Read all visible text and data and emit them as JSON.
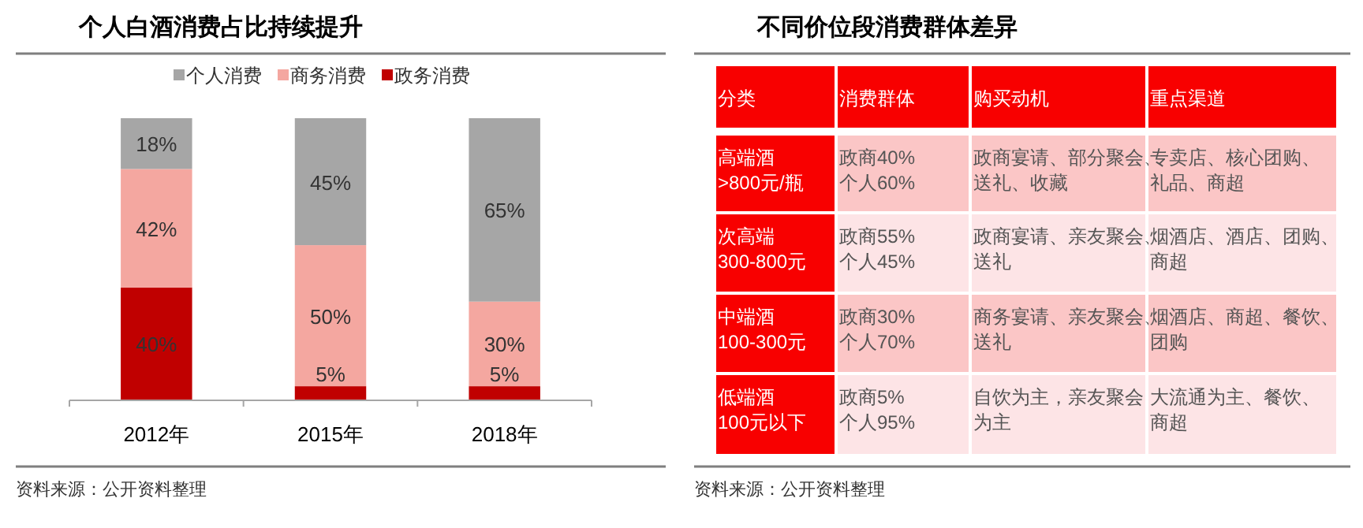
{
  "chart_data": [
    {
      "type": "bar",
      "title": "个人白酒消费占比持续提升",
      "stacked": true,
      "legend": "top",
      "categories": [
        "2012年",
        "2015年",
        "2018年"
      ],
      "series": [
        {
          "name": "政务消费",
          "color": "#c00000",
          "values": [
            40,
            5,
            5
          ],
          "value_labels": [
            "40%",
            "5%",
            "5%"
          ]
        },
        {
          "name": "商务消费",
          "color": "#f4a7a0",
          "values": [
            42,
            50,
            30
          ],
          "value_labels": [
            "42%",
            "50%",
            "30%"
          ]
        },
        {
          "name": "个人消费",
          "color": "#a6a6a6",
          "values": [
            18,
            45,
            65
          ],
          "value_labels": [
            "18%",
            "45%",
            "65%"
          ]
        }
      ],
      "annotations": [
        "资料来源：公开资料整理"
      ]
    },
    {
      "type": "other",
      "title": "不同价位段消费群体差异",
      "categories": [
        "分类",
        "消费群体",
        "购买动机",
        "重点渠道"
      ],
      "cell_labels": [
        [
          "高端酒\n>800元/瓶",
          "政商40%\n个人60%",
          "政商宴请、部分聚会、送礼、收藏",
          "专卖店、核心团购、礼品、商超"
        ],
        [
          "次高端\n300-800元",
          "政商55%\n个人45%",
          "政商宴请、亲友聚会、送礼",
          "烟酒店、酒店、团购、商超"
        ],
        [
          "中端酒\n100-300元",
          "政商30%\n个人70%",
          "商务宴请、亲友聚会、送礼",
          "烟酒店、商超、餐饮、团购"
        ],
        [
          "低端酒\n100元以下",
          "政商5%\n个人95%",
          "自饮为主，亲友聚会为主",
          "大流通为主、餐饮、商超"
        ]
      ],
      "annotations": [
        "资料来源：公开资料整理"
      ]
    }
  ]
}
